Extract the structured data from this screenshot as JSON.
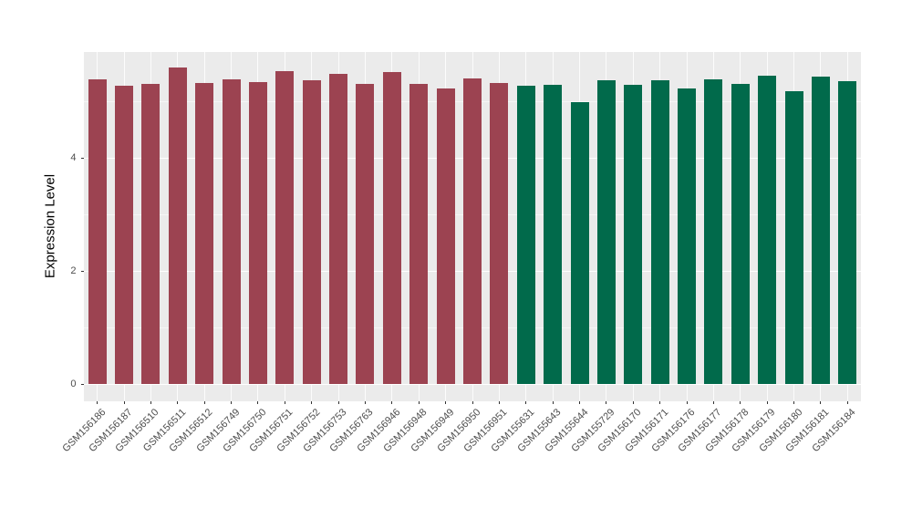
{
  "chart_data": {
    "type": "bar",
    "title": "",
    "xlabel": "",
    "ylabel": "Expression Level",
    "yticks": [
      0,
      2,
      4
    ],
    "minor_gridticks": [
      1,
      3,
      5
    ],
    "ylim": [
      -0.31,
      5.86
    ],
    "grid": "on",
    "legend": "none",
    "panel_background": "#EBEBEB",
    "categories": [
      "GSM156186",
      "GSM156187",
      "GSM156510",
      "GSM156511",
      "GSM156512",
      "GSM156749",
      "GSM156750",
      "GSM156751",
      "GSM156752",
      "GSM156753",
      "GSM156763",
      "GSM156946",
      "GSM156948",
      "GSM156949",
      "GSM156950",
      "GSM156951",
      "GSM155631",
      "GSM155643",
      "GSM155644",
      "GSM155729",
      "GSM156170",
      "GSM156171",
      "GSM156176",
      "GSM156177",
      "GSM156178",
      "GSM156179",
      "GSM156180",
      "GSM156181",
      "GSM156184"
    ],
    "values": [
      5.38,
      5.27,
      5.3,
      5.58,
      5.31,
      5.38,
      5.33,
      5.53,
      5.36,
      5.47,
      5.3,
      5.51,
      5.3,
      5.22,
      5.39,
      5.32,
      5.26,
      5.29,
      4.97,
      5.37,
      5.29,
      5.36,
      5.21,
      5.38,
      5.3,
      5.45,
      5.17,
      5.43,
      5.34
    ],
    "groups": [
      "group1",
      "group1",
      "group1",
      "group1",
      "group1",
      "group1",
      "group1",
      "group1",
      "group1",
      "group1",
      "group1",
      "group1",
      "group1",
      "group1",
      "group1",
      "group1",
      "group2",
      "group2",
      "group2",
      "group2",
      "group2",
      "group2",
      "group2",
      "group2",
      "group2",
      "group2",
      "group2",
      "group2",
      "group2"
    ],
    "group_colors": {
      "group1": "#9C4351",
      "group2": "#016A4B"
    }
  }
}
